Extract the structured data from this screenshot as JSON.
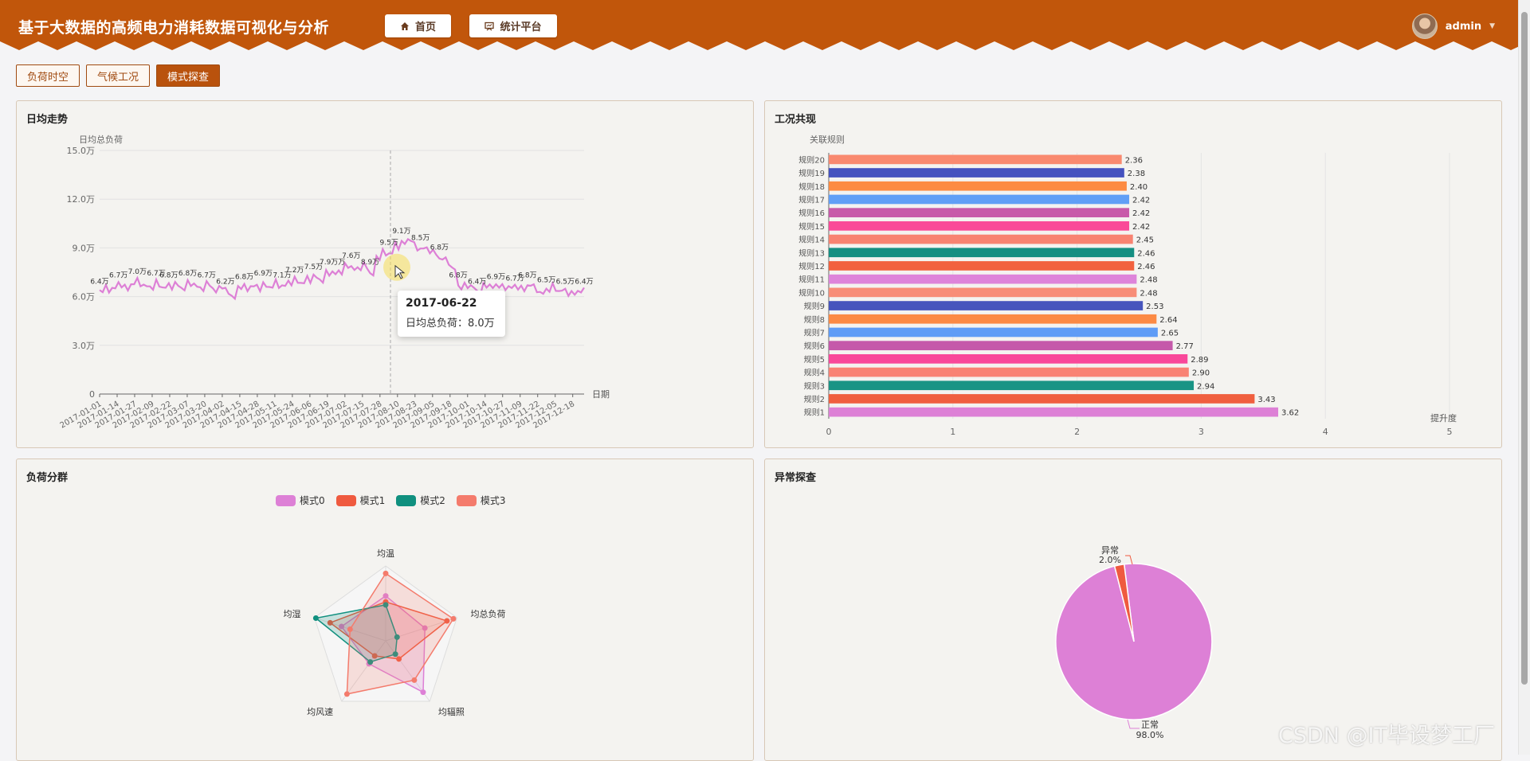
{
  "header": {
    "title": "基于大数据的高频电力消耗数据可视化与分析",
    "nav": [
      {
        "label": "首页",
        "icon": "home-icon"
      },
      {
        "label": "统计平台",
        "icon": "chart-icon"
      }
    ],
    "user": {
      "name": "admin"
    }
  },
  "tabs": [
    {
      "label": "负荷时空",
      "active": false
    },
    {
      "label": "气候工况",
      "active": false
    },
    {
      "label": "模式探查",
      "active": true
    }
  ],
  "panels": {
    "trend": {
      "title": "日均走势"
    },
    "rules": {
      "title": "工况共现"
    },
    "cluster": {
      "title": "负荷分群"
    },
    "anomaly": {
      "title": "异常探查"
    }
  },
  "tooltip": {
    "date": "2017-06-22",
    "text": "日均总负荷：8.0万"
  },
  "watermark": "CSDN @IT毕设梦工厂",
  "colors": {
    "header": "#c1560b",
    "accent": "#b9520d",
    "line": "#dd80d6"
  },
  "chart_data": [
    {
      "type": "line",
      "title": "日均走势",
      "ylabel": "日均总负荷",
      "xlabel": "日期",
      "y_ticks": [
        "0",
        "3.0万",
        "6.0万",
        "9.0万",
        "12.0万",
        "15.0万"
      ],
      "ylim": [
        0,
        150000
      ],
      "x_ticks": [
        "2017-01-01",
        "2017-01-14",
        "2017-01-27",
        "2017-02-09",
        "2017-02-22",
        "2017-03-07",
        "2017-03-20",
        "2017-04-02",
        "2017-04-15",
        "2017-04-28",
        "2017-05-11",
        "2017-05-24",
        "2017-06-06",
        "2017-06-19",
        "2017-07-02",
        "2017-07-15",
        "2017-07-28",
        "2017-08-10",
        "2017-08-23",
        "2017-09-05",
        "2017-09-18",
        "2017-10-01",
        "2017-10-14",
        "2017-10-27",
        "2017-11-09",
        "2017-11-22",
        "2017-12-05",
        "2017-12-18"
      ],
      "series": [
        {
          "values": [
            64000,
            66000,
            67000,
            68000,
            67000,
            69000,
            70000,
            68000,
            67000,
            69000,
            67000,
            68000,
            68000,
            67000,
            69000,
            68000,
            67000,
            68000,
            66000,
            67000,
            64000,
            62000,
            66000,
            67000,
            68000,
            66000,
            69000,
            67000,
            69000,
            68000,
            70000,
            71000,
            70000,
            72000,
            73000,
            72000,
            75000,
            76000,
            77000,
            79000,
            80000,
            78000,
            80000,
            76000,
            84000,
            89000,
            88000,
            92000,
            95000,
            96000,
            92000,
            91000,
            90000,
            88000,
            85000,
            83000,
            78000,
            68000,
            67000,
            68000,
            64000,
            67000,
            69000,
            67000,
            67000,
            68000,
            66000,
            67000,
            68000,
            66000,
            64000,
            65000,
            67000,
            65000,
            64000,
            63000,
            65000,
            64000
          ]
        }
      ],
      "data_labels": [
        "6.4万",
        "6.7万",
        "7.0万",
        "6.7万",
        "6.8万",
        "6.8万",
        "6.7万",
        "6.2万",
        "6.8万",
        "6.9万",
        "7.1万",
        "7.2万",
        "7.5万",
        "7.9万万",
        "7.6万",
        "8.9万",
        "9.5万",
        "9.1万",
        "8.5万",
        "6.8万",
        "6.8万",
        "6.4万",
        "6.9万",
        "6.7万",
        "6.8万",
        "6.5万",
        "6.5万",
        "6.4万"
      ],
      "highlight": {
        "date": "2017-06-22",
        "value": 80000
      }
    },
    {
      "type": "bar",
      "title": "工况共现",
      "ylabel": "关联规则",
      "xlabel": "提升度",
      "xlim": [
        0,
        5
      ],
      "x_ticks": [
        "0",
        "1",
        "2",
        "3",
        "4",
        "5"
      ],
      "categories": [
        "规则1",
        "规则2",
        "规则3",
        "规则4",
        "规则5",
        "规则6",
        "规则7",
        "规则8",
        "规则9",
        "规则10",
        "规则11",
        "规则12",
        "规则13",
        "规则14",
        "规则15",
        "规则16",
        "规则17",
        "规则18",
        "规则19",
        "规则20"
      ],
      "values": [
        3.62,
        3.43,
        2.94,
        2.9,
        2.89,
        2.77,
        2.65,
        2.64,
        2.53,
        2.48,
        2.48,
        2.46,
        2.46,
        2.45,
        2.42,
        2.42,
        2.42,
        2.4,
        2.38,
        2.36
      ],
      "value_labels": [
        "3.62",
        "3.43",
        "2.94",
        "2.90",
        "2.89",
        "2.77",
        "2.65",
        "2.64",
        "2.53",
        "2.48",
        "2.48",
        "2.46",
        "2.46",
        "2.45",
        "2.42",
        "2.42",
        "2.42",
        "2.40",
        "2.38",
        "2.36"
      ],
      "bar_colors": [
        "#dd80d6",
        "#f05f3f",
        "#1a9485",
        "#f98274",
        "#f9489a",
        "#c559aa",
        "#5f9cf6",
        "#fc8a44",
        "#4755bd",
        "#f88d77",
        "#de84da",
        "#f2613e",
        "#158f82",
        "#f88371",
        "#fa4a98",
        "#c85aa9",
        "#619ff6",
        "#fd8b42",
        "#4552bf",
        "#f9896f"
      ]
    },
    {
      "type": "radar",
      "title": "负荷分群",
      "indicators": [
        "均温",
        "均总负荷",
        "均辐照",
        "均风速",
        "均湿"
      ],
      "series": [
        {
          "name": "模式0",
          "color": "#dd80d6",
          "values": [
            0.6,
            0.55,
            0.85,
            0.38,
            0.62
          ]
        },
        {
          "name": "模式1",
          "color": "#ef5a3f",
          "values": [
            0.52,
            0.86,
            0.3,
            0.25,
            0.78
          ]
        },
        {
          "name": "模式2",
          "color": "#10907f",
          "values": [
            0.48,
            0.16,
            0.22,
            0.35,
            0.98
          ]
        },
        {
          "name": "模式3",
          "color": "#f47b6c",
          "values": [
            0.9,
            0.95,
            0.65,
            0.88,
            0.5
          ]
        }
      ]
    },
    {
      "type": "pie",
      "title": "异常探查",
      "slices": [
        {
          "name": "正常",
          "value": 98.0,
          "label": "98.0%",
          "color": "#dd80d6"
        },
        {
          "name": "异常",
          "value": 2.0,
          "label": "2.0%",
          "color": "#ef5a3f"
        }
      ]
    }
  ]
}
